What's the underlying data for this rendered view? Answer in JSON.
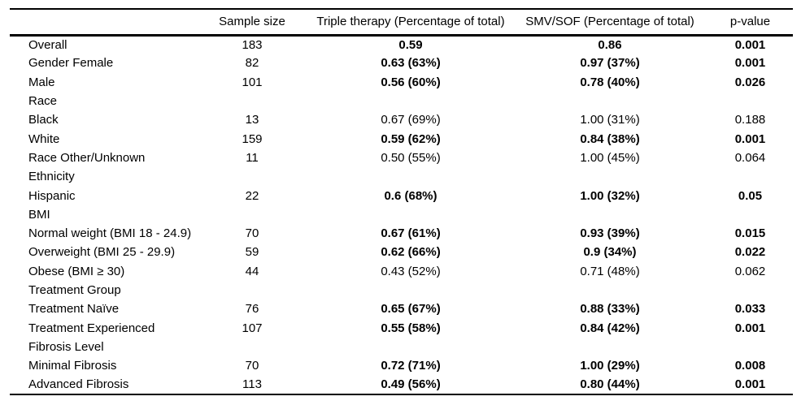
{
  "table": {
    "headers": {
      "label": "",
      "sample_size": "Sample size",
      "triple_therapy": "Triple therapy (Percentage of total)",
      "smv_sof": "SMV/SOF (Percentage of total)",
      "p_value": "p-value"
    },
    "rows": [
      {
        "label": "Overall",
        "sample_size": "183",
        "triple_therapy": "0.59",
        "smv_sof": "0.86",
        "p_value": "0.001",
        "bold": true
      },
      {
        "label": "Gender Female",
        "sample_size": "82",
        "triple_therapy": "0.63 (63%)",
        "smv_sof": "0.97 (37%)",
        "p_value": "0.001",
        "bold": true
      },
      {
        "label": "Male",
        "sample_size": "101",
        "triple_therapy": "0.56 (60%)",
        "smv_sof": "0.78 (40%)",
        "p_value": "0.026",
        "bold": true
      },
      {
        "label": "Race",
        "section": true,
        "bold": false
      },
      {
        "label": "Black",
        "sample_size": "13",
        "triple_therapy": "0.67 (69%)",
        "smv_sof": "1.00 (31%)",
        "p_value": "0.188",
        "bold": false
      },
      {
        "label": "White",
        "sample_size": "159",
        "triple_therapy": "0.59 (62%)",
        "smv_sof": "0.84 (38%)",
        "p_value": "0.001",
        "bold": true
      },
      {
        "label": "Race Other/Unknown",
        "sample_size": "11",
        "triple_therapy": "0.50 (55%)",
        "smv_sof": "1.00 (45%)",
        "p_value": "0.064",
        "bold": false
      },
      {
        "label": "Ethnicity",
        "section": true,
        "bold": false
      },
      {
        "label": "Hispanic",
        "sample_size": "22",
        "triple_therapy": "0.6 (68%)",
        "smv_sof": "1.00 (32%)",
        "p_value": "0.05",
        "bold": true
      },
      {
        "label": "BMI",
        "section": true,
        "bold": false
      },
      {
        "label": "Normal weight (BMI 18 - 24.9)",
        "sample_size": "70",
        "triple_therapy": "0.67 (61%)",
        "smv_sof": "0.93 (39%)",
        "p_value": "0.015",
        "bold": true
      },
      {
        "label": "Overweight (BMI 25 - 29.9)",
        "sample_size": "59",
        "triple_therapy": "0.62 (66%)",
        "smv_sof": "0.9 (34%)",
        "p_value": "0.022",
        "bold": true
      },
      {
        "label": "Obese (BMI ≥ 30)",
        "sample_size": "44",
        "triple_therapy": "0.43 (52%)",
        "smv_sof": "0.71 (48%)",
        "p_value": "0.062",
        "bold": false
      },
      {
        "label": "Treatment Group",
        "section": true,
        "bold": false
      },
      {
        "label": "Treatment Naïve",
        "sample_size": "76",
        "triple_therapy": "0.65 (67%)",
        "smv_sof": "0.88 (33%)",
        "p_value": "0.033",
        "bold": true
      },
      {
        "label": "Treatment Experienced",
        "sample_size": "107",
        "triple_therapy": "0.55 (58%)",
        "smv_sof": "0.84 (42%)",
        "p_value": "0.001",
        "bold": true
      },
      {
        "label": "Fibrosis Level",
        "section": true,
        "bold": false
      },
      {
        "label": "Minimal Fibrosis",
        "sample_size": "70",
        "triple_therapy": "0.72 (71%)",
        "smv_sof": "1.00 (29%)",
        "p_value": "0.008",
        "bold": true
      },
      {
        "label": "Advanced Fibrosis",
        "sample_size": "113",
        "triple_therapy": "0.49 (56%)",
        "smv_sof": "0.80 (44%)",
        "p_value": "0.001",
        "bold": true
      }
    ]
  },
  "colors": {
    "text": "#000000",
    "background": "#ffffff",
    "border": "#000000"
  }
}
